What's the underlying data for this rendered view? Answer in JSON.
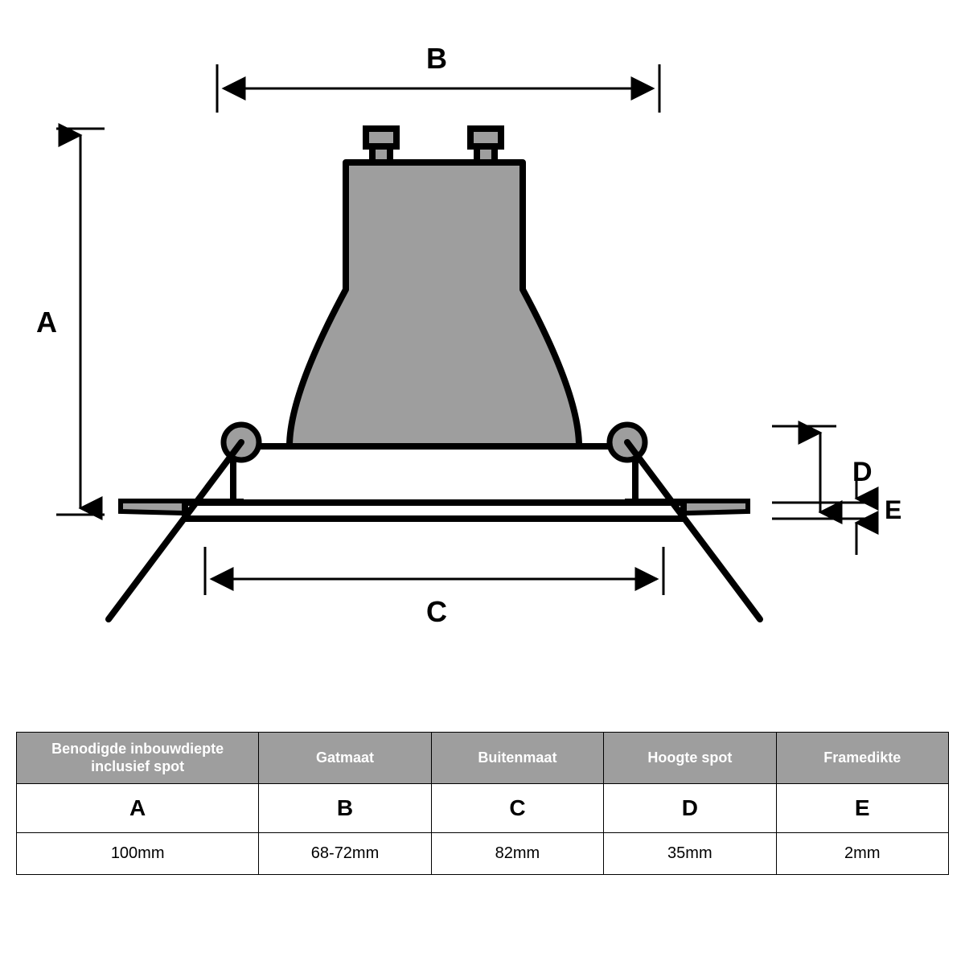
{
  "diagram": {
    "type": "technical-drawing",
    "stroke_color": "#000000",
    "fill_gray": "#9e9e9e",
    "background": "#ffffff",
    "stroke_width_heavy": 8,
    "stroke_width_med": 6,
    "stroke_width_thin": 3,
    "labels": {
      "A": "A",
      "B": "B",
      "C": "C",
      "D": "D",
      "E": "E"
    },
    "label_fontsize": 36
  },
  "table": {
    "header_bg": "#9e9e9e",
    "header_color": "#ffffff",
    "border_color": "#000000",
    "columns": [
      {
        "header": "Benodigde inbouwdiepte inclusief spot",
        "letter": "A",
        "value": "100mm",
        "width": "26%"
      },
      {
        "header": "Gatmaat",
        "letter": "B",
        "value": "68-72mm",
        "width": "18.5%"
      },
      {
        "header": "Buitenmaat",
        "letter": "C",
        "value": "82mm",
        "width": "18.5%"
      },
      {
        "header": "Hoogte spot",
        "letter": "D",
        "value": "35mm",
        "width": "18.5%"
      },
      {
        "header": "Framedikte",
        "letter": "E",
        "value": "2mm",
        "width": "18.5%"
      }
    ]
  }
}
